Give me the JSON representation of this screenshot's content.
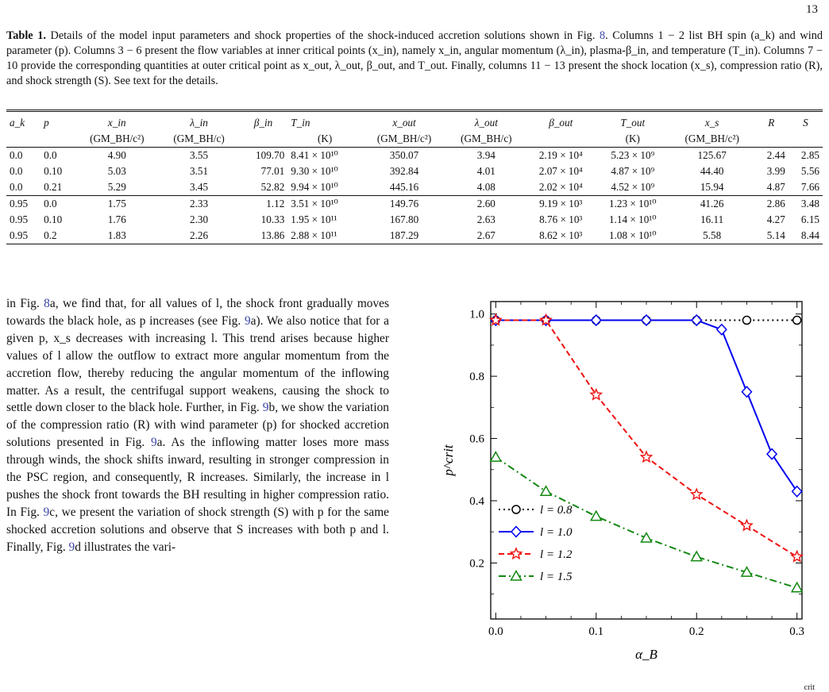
{
  "page_number": "13",
  "caption": {
    "label": "Table 1.",
    "text_before_ref": " Details of the model input parameters and shock properties of the shock-induced accretion solutions shown in Fig. ",
    "fig_ref": "8",
    "text_after_ref": ". Columns 1 − 2 list BH spin (a_k) and wind parameter (p). Columns 3 − 6 present the flow variables at inner critical points (x_in), namely x_in, angular momentum (λ_in), plasma-β_in, and temperature (T_in). Columns 7 − 10 provide the corresponding quantities at outer critical point as x_out, λ_out, β_out, and T_out. Finally, columns 11 − 13 present the shock location (x_s), compression ratio (R), and shock strength (S). See text for the details."
  },
  "table": {
    "headers": [
      "a_k",
      "p",
      "x_in",
      "λ_in",
      "β_in",
      "T_in",
      "x_out",
      "λ_out",
      "β_out",
      "T_out",
      "x_s",
      "R",
      "S"
    ],
    "units": [
      "",
      "",
      "(GM_BH/c²)",
      "(GM_BH/c)",
      "",
      "(K)",
      "(GM_BH/c²)",
      "(GM_BH/c)",
      "",
      "(K)",
      "(GM_BH/c²)",
      "",
      ""
    ],
    "rows": [
      [
        "0.0",
        "0.0",
        "4.90",
        "3.55",
        "109.70",
        "8.41 × 10¹⁰",
        "350.07",
        "3.94",
        "2.19 × 10⁴",
        "5.23 × 10⁹",
        "125.67",
        "2.44",
        "2.85"
      ],
      [
        "0.0",
        "0.10",
        "5.03",
        "3.51",
        "77.01",
        "9.30 × 10¹⁰",
        "392.84",
        "4.01",
        "2.07 × 10⁴",
        "4.87 × 10⁹",
        "44.40",
        "3.99",
        "5.56"
      ],
      [
        "0.0",
        "0.21",
        "5.29",
        "3.45",
        "52.82",
        "9.94 × 10¹⁰",
        "445.16",
        "4.08",
        "2.02 × 10⁴",
        "4.52 × 10⁹",
        "15.94",
        "4.87",
        "7.66"
      ],
      [
        "0.95",
        "0.0",
        "1.75",
        "2.33",
        "1.12",
        "3.51 × 10¹⁰",
        "149.76",
        "2.60",
        "9.19 × 10³",
        "1.23 × 10¹⁰",
        "41.26",
        "2.86",
        "3.48"
      ],
      [
        "0.95",
        "0.10",
        "1.76",
        "2.30",
        "10.33",
        "1.95 × 10¹¹",
        "167.80",
        "2.63",
        "8.76 × 10³",
        "1.14 × 10¹⁰",
        "16.11",
        "4.27",
        "6.15"
      ],
      [
        "0.95",
        "0.2",
        "1.83",
        "2.26",
        "13.86",
        "2.88 × 10¹¹",
        "187.29",
        "2.67",
        "8.62 × 10³",
        "1.08 × 10¹⁰",
        "5.58",
        "5.14",
        "8.44"
      ]
    ]
  },
  "body": {
    "p1": "in Fig. ",
    "r1": "8",
    "p2": "a, we find that, for all values of l, the shock front gradually moves towards the black hole, as p increases (see Fig. ",
    "r2": "9",
    "p3": "a). We also notice that for a given p, x_s decreases with increasing l. This trend arises because higher values of l allow the outflow to extract more angular momentum from the accretion flow, thereby reducing the angular momentum of the inflowing matter. As a result, the centrifugal support weakens, causing the shock to settle down closer to the black hole. Further, in Fig. ",
    "r3": "9",
    "p4": "b, we show the variation of the compression ratio (R) with wind parameter (p) for shocked accretion solutions presented in Fig. ",
    "r4": "9",
    "p5": "a. As the inflowing matter loses more mass through winds, the shock shifts inward, resulting in stronger compression in the PSC region, and consequently, R increases. Similarly, the increase in l pushes the shock front towards the BH resulting in higher compression ratio. In Fig. ",
    "r5": "9",
    "p6": "c, we present the variation of shock strength (S) with p for the same shocked accretion solutions and observe that S increases with both p and l. Finally, Fig. ",
    "r6": "9",
    "p7": "d illustrates the vari-"
  },
  "footer_fragment": "crit",
  "chart_data": {
    "type": "line",
    "xlabel": "α_B",
    "ylabel": "p^crit",
    "xlim": [
      -0.005,
      0.305
    ],
    "ylim": [
      0.02,
      1.04
    ],
    "xticks": [
      "0.0",
      "0.1",
      "0.2",
      "0.3"
    ],
    "yticks": [
      "0.2",
      "0.4",
      "0.6",
      "0.8",
      "1.0"
    ],
    "legend_position": "lower-left",
    "series": [
      {
        "name": "l = 0.8",
        "color": "#000000",
        "dash": "dotted",
        "marker": "circle",
        "x": [
          0.0,
          0.05,
          0.1,
          0.15,
          0.2,
          0.25,
          0.3
        ],
        "y": [
          0.98,
          0.98,
          0.98,
          0.98,
          0.98,
          0.98,
          0.98
        ]
      },
      {
        "name": "l = 1.0",
        "color": "#0000ee",
        "dash": "solid",
        "marker": "diamond",
        "x": [
          0.0,
          0.05,
          0.1,
          0.15,
          0.2,
          0.225,
          0.25,
          0.275,
          0.3
        ],
        "y": [
          0.98,
          0.98,
          0.98,
          0.98,
          0.98,
          0.95,
          0.75,
          0.55,
          0.43
        ]
      },
      {
        "name": "l = 1.2",
        "color": "#ee1111",
        "dash": "dashed",
        "marker": "star",
        "x": [
          0.0,
          0.05,
          0.1,
          0.15,
          0.2,
          0.25,
          0.3
        ],
        "y": [
          0.98,
          0.98,
          0.74,
          0.54,
          0.42,
          0.32,
          0.22
        ]
      },
      {
        "name": "l = 1.5",
        "color": "#118811",
        "dash": "dashdot",
        "marker": "triangle",
        "x": [
          0.0,
          0.05,
          0.1,
          0.15,
          0.2,
          0.25,
          0.3
        ],
        "y": [
          0.54,
          0.43,
          0.35,
          0.28,
          0.22,
          0.17,
          0.12
        ]
      }
    ]
  }
}
